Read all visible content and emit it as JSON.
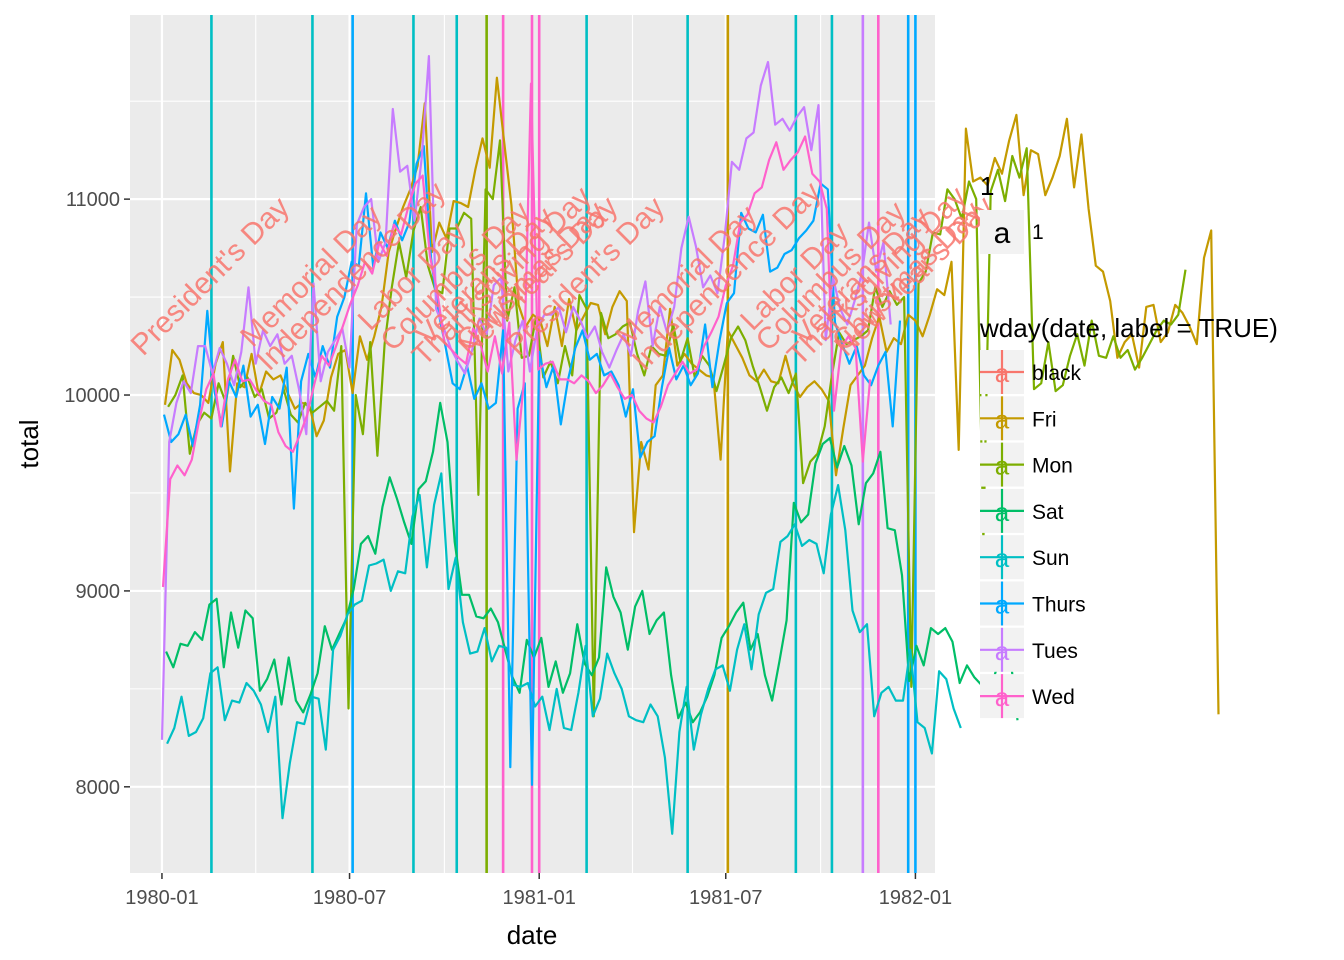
{
  "chart_data": {
    "type": "line",
    "xlabel": "date",
    "ylabel": "total",
    "xlim": [
      "1979-12-01",
      "1982-01-20"
    ],
    "ylim": [
      7560,
      11940
    ],
    "x_ticks": [
      {
        "date": "1980-01-01",
        "label": "1980-01"
      },
      {
        "date": "1980-07-01",
        "label": "1980-07"
      },
      {
        "date": "1981-01-01",
        "label": "1981-01"
      },
      {
        "date": "1981-07-01",
        "label": "1981-07"
      },
      {
        "date": "1982-01-01",
        "label": "1982-01"
      }
    ],
    "y_ticks": [
      {
        "value": 8000,
        "label": "8000"
      },
      {
        "value": 9000,
        "label": "9000"
      },
      {
        "value": 10000,
        "label": "10000"
      },
      {
        "value": 11000,
        "label": "11000"
      }
    ],
    "grid": true,
    "legend_position": "right",
    "shape_legend": {
      "title": "1",
      "key_glyph": "a",
      "entries": [
        {
          "label": "1"
        }
      ]
    },
    "color_legend": {
      "title": "wday(date, label = TRUE)",
      "key_glyph": "a"
    },
    "series": [
      {
        "name": "Fri",
        "color": "#C49A00",
        "start": "1980-01-04",
        "step_days": 7,
        "values": [
          9950,
          10230,
          10180,
          10060,
          10010,
          10000,
          9960,
          10160,
          10270,
          9610,
          10060,
          10040,
          10210,
          10000,
          10120,
          10080,
          10100,
          10010,
          9930,
          9960,
          9950,
          9790,
          9870,
          10090,
          10210,
          10230,
          10010,
          10300,
          10180,
          10300,
          10450,
          10730,
          10850,
          10960,
          11050,
          11170,
          11490,
          10730,
          10880,
          10800,
          10990,
          10980,
          10960,
          11150,
          11310,
          11160,
          11620,
          11290,
          10970,
          10460,
          10350,
          10410,
          10380,
          10250,
          10450,
          10250,
          10490,
          10330,
          10400,
          10470,
          10460,
          10310,
          10450,
          10530,
          10480,
          9300,
          9760,
          9620,
          10050,
          10100,
          10440,
          10150,
          10210,
          10160,
          10130,
          10100,
          10090,
          9670,
          10330,
          10260,
          10190,
          10100,
          10070,
          10130,
          10070,
          10060,
          10200,
          10060,
          9990,
          10040,
          10070,
          10030,
          9970,
          9590,
          9830,
          10050,
          10100,
          10150,
          10290,
          10400,
          10220,
          10290,
          10260,
          10410,
          10380,
          10300,
          10410,
          10540,
          10510,
          10680,
          9720,
          11360,
          11090,
          11110,
          11070,
          11210,
          11130,
          11300,
          11430,
          11020,
          11250,
          11230,
          11020,
          11110,
          11220,
          11410,
          11060,
          11330,
          10950,
          10660,
          10630,
          10480,
          10190,
          10270,
          10310,
          10140,
          10450,
          10460,
          10270,
          10320,
          10460,
          10420,
          10350,
          10260,
          10700,
          10840,
          8370
        ]
      },
      {
        "name": "Mon",
        "color": "#7CAE00",
        "start": "1980-01-07",
        "step_days": 7,
        "values": [
          9940,
          10000,
          10100,
          9700,
          9850,
          9910,
          9880,
          10060,
          9960,
          10200,
          10040,
          10090,
          9990,
          10030,
          9880,
          9910,
          10030,
          9900,
          9860,
          9960,
          9910,
          9940,
          9970,
          9920,
          10250,
          8400,
          10000,
          9800,
          10270,
          9690,
          10260,
          10550,
          10780,
          10600,
          10840,
          10960,
          10660,
          10540,
          10520,
          10850,
          10850,
          10930,
          10900,
          9490,
          11050,
          11000,
          11300,
          10380,
          10550,
          10190,
          10200,
          10400,
          10090,
          10170,
          10060,
          10250,
          10100,
          10510,
          10440,
          8360,
          10420,
          10290,
          10310,
          10350,
          10370,
          10210,
          10100,
          10250,
          10210,
          10200,
          10360,
          10170,
          10290,
          10090,
          10200,
          10150,
          10020,
          10150,
          10290,
          10350,
          10280,
          10150,
          10040,
          9920,
          10040,
          10090,
          10010,
          10110,
          9550,
          9660,
          9700,
          9840,
          10100,
          10320,
          10260,
          10280,
          10300,
          10330,
          10550,
          10450,
          10530,
          10460,
          10500,
          8510,
          10570,
          10630,
          10830,
          10820,
          11050,
          11000,
          10900,
          11090,
          11000,
          9260,
          11040,
          11150,
          10990,
          11220,
          11110,
          11260,
          10030,
          10060,
          10270,
          10020,
          10050,
          10200,
          10310,
          10150,
          10380,
          10200,
          10190,
          10300,
          10190,
          10230,
          10130,
          10190,
          10260,
          10330,
          10380,
          10360,
          10410,
          10640
        ]
      },
      {
        "name": "Sat",
        "color": "#00BE67",
        "start": "1980-01-05",
        "step_days": 7,
        "values": [
          8690,
          8610,
          8730,
          8720,
          8790,
          8750,
          8930,
          8960,
          8610,
          8890,
          8710,
          8900,
          8860,
          8490,
          8550,
          8650,
          8420,
          8660,
          8440,
          8380,
          8470,
          8580,
          8820,
          8700,
          8780,
          8860,
          9010,
          9240,
          9280,
          9190,
          9430,
          9580,
          9470,
          9350,
          9240,
          9520,
          9560,
          9710,
          9960,
          9760,
          9250,
          8980,
          8980,
          8870,
          8860,
          8910,
          8840,
          8700,
          8560,
          8480,
          8750,
          8660,
          8760,
          8510,
          8640,
          8480,
          8580,
          8830,
          8630,
          8570,
          8660,
          9120,
          8970,
          8890,
          8700,
          8920,
          9000,
          8780,
          8850,
          8890,
          8570,
          8350,
          8430,
          8330,
          8380,
          8460,
          8570,
          8760,
          8820,
          8890,
          8940,
          8700,
          8780,
          8570,
          8440,
          8640,
          8850,
          9450,
          9350,
          9390,
          9650,
          9750,
          9780,
          9630,
          9740,
          9640,
          9340,
          9550,
          9600,
          9710,
          9320,
          9310,
          9080,
          8540,
          8720,
          8620,
          8810,
          8780,
          8810,
          8740,
          8530,
          8620,
          8560,
          8520,
          8460,
          8590,
          8640,
          8670,
          8340
        ]
      },
      {
        "name": "Sun",
        "color": "#00BFC4",
        "start": "1980-01-06",
        "step_days": 7,
        "values": [
          8220,
          8300,
          8460,
          8260,
          8280,
          8350,
          8580,
          8610,
          8340,
          8440,
          8430,
          8530,
          8490,
          8420,
          8280,
          8460,
          7840,
          8120,
          8330,
          8320,
          8460,
          8450,
          8190,
          8700,
          8770,
          8880,
          8930,
          8950,
          9130,
          9140,
          9160,
          9000,
          9100,
          9090,
          9380,
          9490,
          9120,
          9440,
          9600,
          9010,
          9170,
          8840,
          8680,
          8690,
          8810,
          8640,
          8720,
          8710,
          8520,
          8510,
          8530,
          8410,
          8460,
          8290,
          8500,
          8300,
          8290,
          8480,
          8720,
          8360,
          8450,
          8680,
          8580,
          8500,
          8360,
          8340,
          8330,
          8420,
          8360,
          8150,
          7760,
          8280,
          8510,
          8190,
          8370,
          8500,
          8600,
          8620,
          8490,
          8700,
          8830,
          8600,
          8880,
          8990,
          9010,
          9250,
          9280,
          9340,
          9230,
          9260,
          9240,
          9090,
          9390,
          9540,
          9310,
          8900,
          8790,
          8830,
          8360,
          8480,
          8510,
          8440,
          8440,
          8700,
          8330,
          8300,
          8170,
          8590,
          8550,
          8400,
          8300
        ]
      },
      {
        "name": "Thurs",
        "color": "#00A9FF",
        "start": "1980-01-03",
        "step_days": 7,
        "values": [
          9900,
          9760,
          9800,
          9900,
          9740,
          9950,
          10430,
          10020,
          9840,
          10070,
          9990,
          10150,
          9890,
          9950,
          9750,
          9990,
          9930,
          10140,
          9420,
          10070,
          10210,
          10090,
          10250,
          10140,
          10400,
          10500,
          10680,
          10660,
          11030,
          10650,
          10830,
          10750,
          10890,
          10790,
          10880,
          11180,
          11270,
          10700,
          10430,
          10250,
          10060,
          10030,
          10150,
          9980,
          10060,
          9930,
          9960,
          10330,
          8100,
          9930,
          10060,
          8010,
          10220,
          10040,
          10150,
          9850,
          10080,
          10240,
          10330,
          10180,
          10210,
          10100,
          10120,
          10050,
          9890,
          10030,
          9680,
          9760,
          9790,
          10040,
          10240,
          10080,
          10150,
          10050,
          10110,
          10360,
          10040,
          10280,
          10470,
          10520,
          10930,
          10850,
          10830,
          10920,
          10630,
          10650,
          10720,
          10740,
          10800,
          10840,
          10890,
          11080,
          11050,
          10370,
          10260,
          10160,
          10250,
          10100,
          10050,
          10150,
          10220,
          9840,
          10380
        ]
      },
      {
        "name": "Tues",
        "color": "#C77CFF",
        "start": "1980-01-01",
        "step_days": 7,
        "values": [
          8240,
          9760,
          9960,
          10070,
          10010,
          10250,
          10250,
          10110,
          10240,
          10160,
          10050,
          10220,
          10550,
          10160,
          10330,
          10250,
          10310,
          10160,
          10200,
          10030,
          9800,
          10570,
          10070,
          10220,
          10280,
          10340,
          10140,
          10870,
          10960,
          11000,
          10680,
          10780,
          11460,
          11140,
          11170,
          10890,
          11210,
          11730,
          10440,
          10350,
          10240,
          10170,
          10110,
          10230,
          10390,
          10310,
          10560,
          10600,
          10120,
          10280,
          10380,
          10120,
          10340,
          10410,
          10410,
          10450,
          10320,
          10450,
          10380,
          10290,
          10350,
          10220,
          10140,
          10230,
          10310,
          10200,
          10430,
          10580,
          10250,
          10450,
          10320,
          10450,
          10750,
          10910,
          10760,
          10550,
          10610,
          10520,
          10810,
          11190,
          11150,
          11310,
          11340,
          11580,
          11700,
          11380,
          11410,
          11350,
          11420,
          11470,
          11250,
          11480,
          10280,
          10600,
          10440,
          10360,
          10480,
          10620,
          10880,
          10630,
          10780,
          10360
        ]
      },
      {
        "name": "Wed",
        "color": "#FF61CC",
        "start": "1980-01-02",
        "step_days": 7,
        "values": [
          9020,
          9570,
          9640,
          9590,
          9670,
          9870,
          10030,
          10110,
          9840,
          10080,
          10180,
          10070,
          10080,
          10020,
          9970,
          9950,
          9810,
          9740,
          9710,
          9800,
          9900,
          10060,
          10200,
          10150,
          10250,
          10360,
          10470,
          10560,
          10680,
          10620,
          10780,
          10710,
          10870,
          10820,
          10960,
          11080,
          11120,
          10710,
          10530,
          10270,
          10230,
          10190,
          10160,
          10340,
          10260,
          10120,
          10300,
          10110,
          10370,
          9670,
          10060,
          11590,
          10130,
          10160,
          10170,
          10080,
          10080,
          10060,
          10100,
          10070,
          10010,
          10050,
          10110,
          10040,
          9980,
          10000,
          9920,
          9880,
          9860,
          9940,
          10050,
          10110,
          10170,
          10110,
          10130,
          10250,
          10320,
          10400,
          10560,
          10660,
          10880,
          10920,
          11030,
          11060,
          11200,
          11290,
          11150,
          11200,
          11240,
          11320,
          11130,
          11090,
          10950,
          9920,
          10240,
          10300,
          10240,
          9660,
          10080
        ]
      }
    ],
    "holiday_lines": [
      {
        "date": "1980-02-18",
        "color": "#00BFC4"
      },
      {
        "date": "1980-05-26",
        "color": "#00BFC4"
      },
      {
        "date": "1980-07-04",
        "color": "#00A9FF"
      },
      {
        "date": "1980-09-01",
        "color": "#00BFC4"
      },
      {
        "date": "1980-10-13",
        "color": "#00BFC4"
      },
      {
        "date": "1980-11-11",
        "color": "#7CAE00"
      },
      {
        "date": "1980-11-27",
        "color": "#FF61CC"
      },
      {
        "date": "1980-12-25",
        "color": "#FF61CC"
      },
      {
        "date": "1981-01-01",
        "color": "#FF61CC"
      },
      {
        "date": "1981-02-16",
        "color": "#00BFC4"
      },
      {
        "date": "1981-05-25",
        "color": "#00BFC4"
      },
      {
        "date": "1981-07-03",
        "color": "#C49A00"
      },
      {
        "date": "1981-09-07",
        "color": "#00BFC4"
      },
      {
        "date": "1981-10-12",
        "color": "#00BFC4"
      },
      {
        "date": "1981-11-11",
        "color": "#C77CFF"
      },
      {
        "date": "1981-11-26",
        "color": "#FF61CC"
      },
      {
        "date": "1981-12-25",
        "color": "#00A9FF"
      },
      {
        "date": "1982-01-01",
        "color": "#00A9FF"
      }
    ],
    "holiday_labels": [
      {
        "date": "1980-02-18",
        "text": "President's Day"
      },
      {
        "date": "1980-05-26",
        "text": "Memorial Day"
      },
      {
        "date": "1980-07-04",
        "text": "Independence Day"
      },
      {
        "date": "1980-09-01",
        "text": "Labor Day"
      },
      {
        "date": "1980-10-13",
        "text": "Columbus Day"
      },
      {
        "date": "1980-11-11",
        "text": "Veterans Day"
      },
      {
        "date": "1980-11-27",
        "text": "Thanksgiving Day"
      },
      {
        "date": "1980-12-25",
        "text": "Christmas Day"
      },
      {
        "date": "1981-01-01",
        "text": "New Year's Day"
      },
      {
        "date": "1981-02-16",
        "text": "President's Day"
      },
      {
        "date": "1981-05-25",
        "text": "Memorial Day"
      },
      {
        "date": "1981-07-03",
        "text": "Independence Day"
      },
      {
        "date": "1981-09-07",
        "text": "Labor Day"
      },
      {
        "date": "1981-10-12",
        "text": "Columbus Day"
      },
      {
        "date": "1981-11-11",
        "text": "Veterans Day"
      },
      {
        "date": "1981-11-26",
        "text": "Thanksgiving Day"
      },
      {
        "date": "1981-12-25",
        "text": "Christmas Day"
      },
      {
        "date": "1982-01-01",
        "text": "New Year's Day"
      }
    ],
    "holiday_label_color": "#F8766D",
    "holiday_label_total": 10600,
    "legend_entries": [
      {
        "label": "black",
        "color": "#F8766D"
      },
      {
        "label": "Fri",
        "color": "#C49A00"
      },
      {
        "label": "Mon",
        "color": "#7CAE00"
      },
      {
        "label": "Sat",
        "color": "#00BE67"
      },
      {
        "label": "Sun",
        "color": "#00BFC4"
      },
      {
        "label": "Thurs",
        "color": "#00A9FF"
      },
      {
        "label": "Tues",
        "color": "#C77CFF"
      },
      {
        "label": "Wed",
        "color": "#FF61CC"
      }
    ]
  },
  "colors": {
    "panel_background": "#EBEBEB",
    "grid_major": "#FFFFFF",
    "legend_key_background": "#F2F2F2",
    "axis_text": "#4D4D4D"
  }
}
